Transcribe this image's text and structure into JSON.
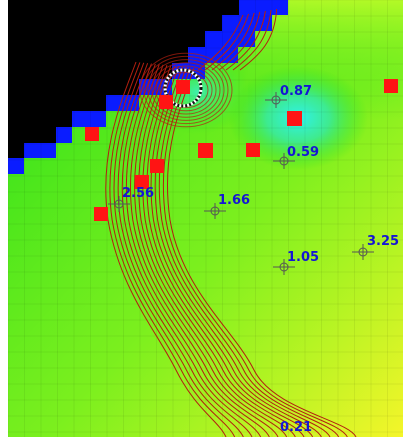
{
  "colors": {
    "background": "#ffffff",
    "field_green": "#22e01a",
    "field_yellow": "#f2ff25",
    "field_cyan": "#2ff2ee",
    "no_data_black": "#000000",
    "boundary_blue": "#0a1cff",
    "well_red": "#ff1414",
    "contour_red": "#b31f10",
    "label_blue": "#1515d5",
    "cursor": "#111111"
  },
  "icons": {
    "well": "red-square-well-icon",
    "observation_point": "crosshair-circle-icon",
    "selection_ring": "dashed-circle-cursor-icon"
  },
  "observation_labels": {
    "p1": "0.87",
    "p2": "0.59",
    "p3": "2.56",
    "p4": "1.66",
    "p5": "1.05",
    "p6": "3.25",
    "p7": "0.21"
  }
}
